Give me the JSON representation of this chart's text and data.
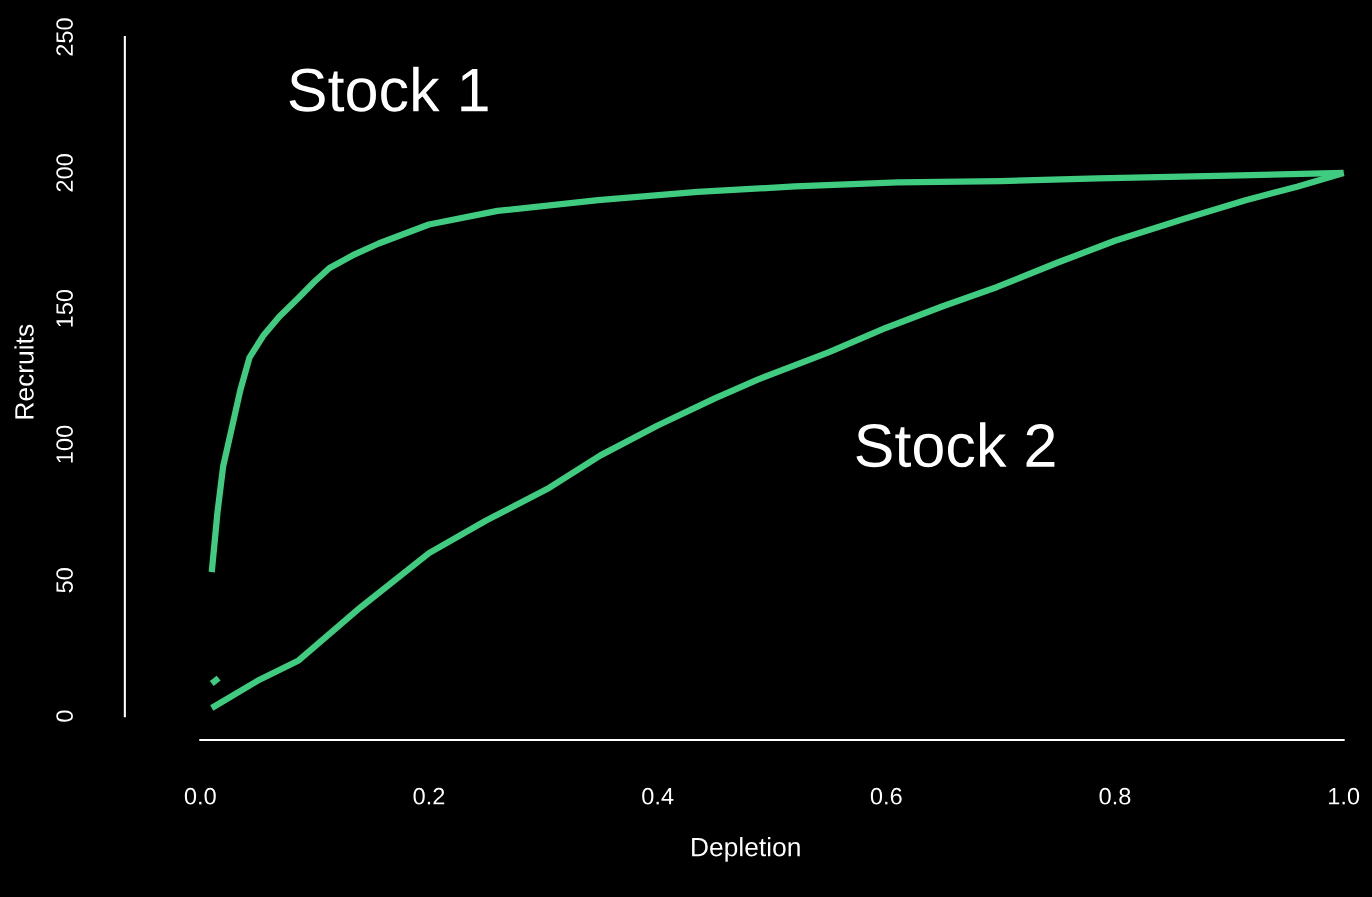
{
  "chart_data": {
    "type": "line",
    "xlabel": "Depletion",
    "ylabel": "Recruits",
    "xlim": [
      -0.066,
      1.02
    ],
    "ylim": [
      -8.8,
      262
    ],
    "xticks": [
      {
        "value": 0,
        "label": "0.0"
      },
      0.2,
      0.4,
      0.6,
      0.8,
      {
        "value": 1,
        "label": "1.0"
      }
    ],
    "yticks": [
      0,
      50,
      100,
      150,
      200,
      250
    ],
    "grid": false,
    "legend": false,
    "marker": "none",
    "line_style": "solid",
    "series": [
      {
        "name": "Stock 1",
        "color": "#40cc80",
        "x": [
          0.01,
          0.015,
          0.02,
          0.027,
          0.035,
          0.043,
          0.055,
          0.069,
          0.086,
          0.1,
          0.113,
          0.135,
          0.156,
          0.2,
          0.26,
          0.348,
          0.435,
          0.52,
          0.61,
          0.7,
          0.785,
          0.9,
          1.0
        ],
        "values": [
          53,
          75,
          92,
          105,
          120,
          132,
          140,
          147,
          154,
          160,
          165,
          170,
          174,
          181,
          186,
          190,
          193,
          195,
          196.5,
          197,
          198,
          199,
          200
        ]
      },
      {
        "name": "Stock 2",
        "color": "#40cc80",
        "x": [
          0.01,
          0.05,
          0.086,
          0.14,
          0.2,
          0.25,
          0.305,
          0.35,
          0.4,
          0.45,
          0.488,
          0.55,
          0.6,
          0.65,
          0.697,
          0.75,
          0.8,
          0.86,
          0.915,
          0.96,
          1.0
        ],
        "values": [
          3,
          13,
          20.5,
          40,
          60,
          72,
          84,
          96,
          107,
          117,
          124,
          134,
          143,
          151,
          158,
          167,
          175,
          183,
          190,
          195,
          200
        ]
      },
      {
        "color": "#40cc80",
        "x": [
          0.01,
          0.016
        ],
        "values": [
          12,
          14
        ]
      }
    ]
  }
}
